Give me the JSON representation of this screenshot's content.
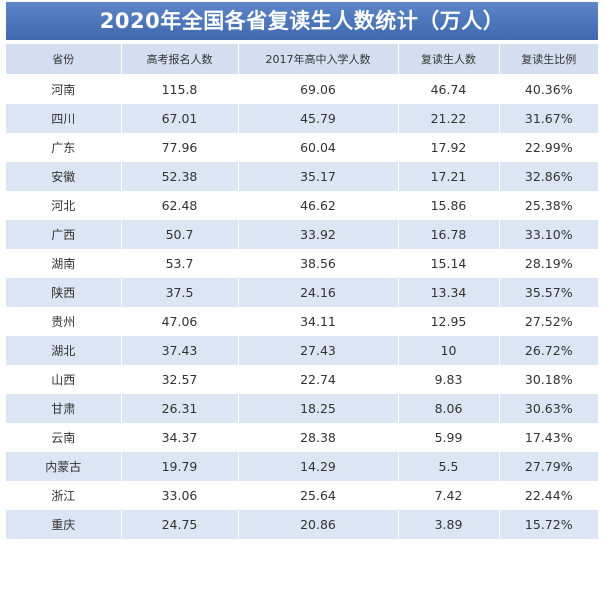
{
  "title": "2020年全国各省复读生人数统计（万人）",
  "columns": [
    "省份",
    "高考报名人数",
    "2017年高中入学人数",
    "复读生人数",
    "复读生比例"
  ],
  "rows": [
    [
      "河南",
      "115.8",
      "69.06",
      "46.74",
      "40.36%"
    ],
    [
      "四川",
      "67.01",
      "45.79",
      "21.22",
      "31.67%"
    ],
    [
      "广东",
      "77.96",
      "60.04",
      "17.92",
      "22.99%"
    ],
    [
      "安徽",
      "52.38",
      "35.17",
      "17.21",
      "32.86%"
    ],
    [
      "河北",
      "62.48",
      "46.62",
      "15.86",
      "25.38%"
    ],
    [
      "广西",
      "50.7",
      "33.92",
      "16.78",
      "33.10%"
    ],
    [
      "湖南",
      "53.7",
      "38.56",
      "15.14",
      "28.19%"
    ],
    [
      "陕西",
      "37.5",
      "24.16",
      "13.34",
      "35.57%"
    ],
    [
      "贵州",
      "47.06",
      "34.11",
      "12.95",
      "27.52%"
    ],
    [
      "湖北",
      "37.43",
      "27.43",
      "10",
      "26.72%"
    ],
    [
      "山西",
      "32.57",
      "22.74",
      "9.83",
      "30.18%"
    ],
    [
      "甘肃",
      "26.31",
      "18.25",
      "8.06",
      "30.63%"
    ],
    [
      "云南",
      "34.37",
      "28.38",
      "5.99",
      "17.43%"
    ],
    [
      "内蒙古",
      "19.79",
      "14.29",
      "5.5",
      "27.79%"
    ],
    [
      "浙江",
      "33.06",
      "25.64",
      "7.42",
      "22.44%"
    ],
    [
      "重庆",
      "24.75",
      "20.86",
      "3.89",
      "15.72%"
    ]
  ],
  "colors": {
    "title_bg": "#4a74b9",
    "header_bg": "#d3dff1",
    "stripe_bg": "#dbe5f3"
  }
}
